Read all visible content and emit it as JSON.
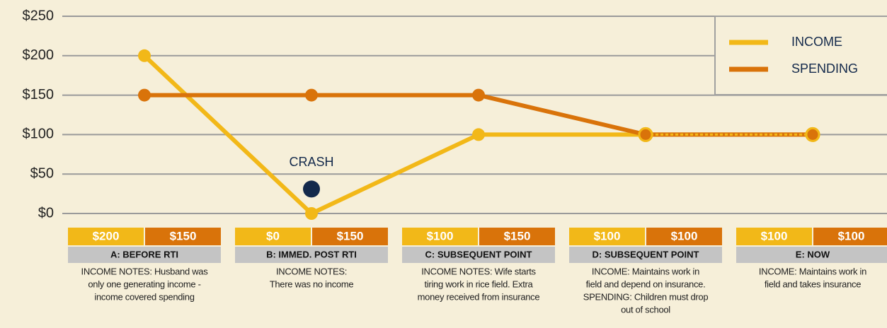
{
  "chart_data": {
    "type": "line",
    "categories": [
      "A: BEFORE RTI",
      "B: IMMED. POST RTI",
      "C: SUBSEQUENT POINT",
      "D: SUBSEQUENT POINT",
      "E: NOW"
    ],
    "series": [
      {
        "name": "INCOME",
        "color": "#f2b818",
        "values": [
          200,
          0,
          100,
          100,
          100
        ],
        "value_labels": [
          "$200",
          "$0",
          "$100",
          "$100",
          "$100"
        ]
      },
      {
        "name": "SPENDING",
        "color": "#d9730a",
        "values": [
          150,
          150,
          150,
          100,
          100
        ],
        "value_labels": [
          "$150",
          "$150",
          "$150",
          "$100",
          "$100"
        ]
      }
    ],
    "ylim": [
      0,
      250
    ],
    "yticks": [
      {
        "value": 0,
        "label": "$0"
      },
      {
        "value": 50,
        "label": "$50"
      },
      {
        "value": 100,
        "label": "$100"
      },
      {
        "value": 150,
        "label": "$150"
      },
      {
        "value": 200,
        "label": "$200"
      },
      {
        "value": 250,
        "label": "$250"
      }
    ],
    "grid": true,
    "legend": "upper right",
    "annotation": {
      "label": "CRASH",
      "category": 1,
      "value": 31,
      "color": "#13294b"
    },
    "notes": [
      [
        "INCOME NOTES: Husband was",
        "only one generating income -",
        "income covered spending"
      ],
      [
        "INCOME NOTES:",
        "There was no income"
      ],
      [
        "INCOME NOTES: Wife starts",
        "tiring work in rice field. Extra",
        "money received from insurance"
      ],
      [
        "INCOME: Maintains work in",
        "field and depend on insurance.",
        "SPENDING: Children must drop",
        "out of school"
      ],
      [
        "INCOME: Maintains work in",
        "field and takes insurance"
      ]
    ]
  }
}
